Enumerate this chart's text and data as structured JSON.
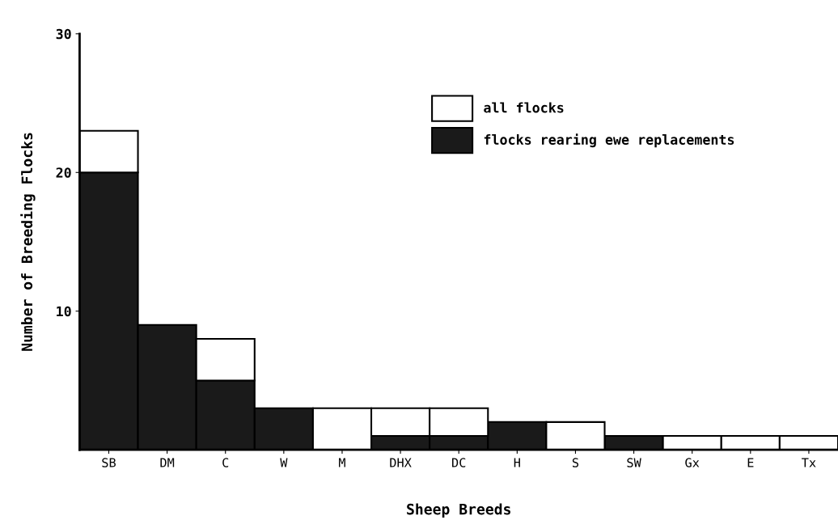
{
  "chart_data": {
    "type": "bar",
    "stacked": true,
    "xlabel": "Sheep Breeds",
    "ylabel": "Number of Breeding Flocks",
    "categories": [
      "SB",
      "DM",
      "C",
      "W",
      "M",
      "DHX",
      "DC",
      "H",
      "S",
      "SW",
      "Gx",
      "E",
      "Tx"
    ],
    "series": [
      {
        "name": "flocks rearing ewe replacements",
        "color": "#1a1a1a",
        "values": [
          20,
          9,
          5,
          3,
          0,
          1,
          1,
          2,
          0,
          1,
          0,
          0,
          0
        ]
      },
      {
        "name": "all flocks",
        "color": "#ffffff",
        "values": [
          3,
          0,
          3,
          0,
          3,
          2,
          2,
          0,
          2,
          0,
          1,
          1,
          1
        ]
      }
    ],
    "ylim": [
      0,
      30
    ],
    "yticks": [
      10,
      20,
      30
    ],
    "grid": false,
    "legend": "top right"
  }
}
